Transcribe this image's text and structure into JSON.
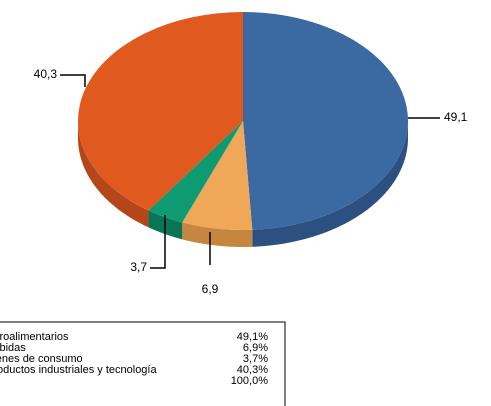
{
  "chart_data": {
    "type": "pie3d",
    "categories": [
      "Agroalimentarios",
      "Bebidas",
      "Bienes de consumo",
      "Productos industriales y tecnología"
    ],
    "values": [
      49.1,
      6.9,
      3.7,
      40.3
    ],
    "value_labels": [
      "49,1",
      "6,9",
      "3,7",
      "40,3"
    ],
    "table_labels": [
      "49,1%",
      "6,9%",
      "3,7%",
      "40,3%"
    ],
    "total": {
      "value": 100,
      "label": "100,0%"
    },
    "colors": [
      "#3b6aa3",
      "#f0a757",
      "#0f9a72",
      "#e05a20"
    ],
    "side_colors": [
      "#2c5081",
      "#c7863f",
      "#0a7556",
      "#b5461a"
    ]
  }
}
